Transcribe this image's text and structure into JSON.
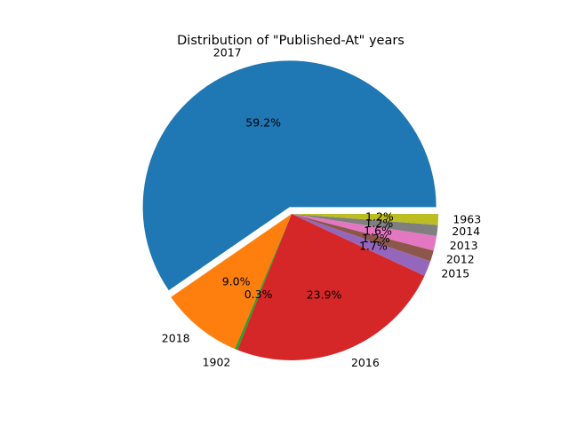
{
  "chart_data": {
    "type": "pie",
    "title": "Distribution of \"Published-At\" years",
    "slices": [
      {
        "label": "2017",
        "value": 59.2,
        "pct_label": "59.2%",
        "color": "#1f77b4",
        "exploded": true
      },
      {
        "label": "2018",
        "value": 9.0,
        "pct_label": "9.0%",
        "color": "#ff7f0e",
        "exploded": false
      },
      {
        "label": "1902",
        "value": 0.3,
        "pct_label": "0.3%",
        "color": "#2ca02c",
        "exploded": false
      },
      {
        "label": "2016",
        "value": 23.9,
        "pct_label": "23.9%",
        "color": "#d62728",
        "exploded": false
      },
      {
        "label": "2015",
        "value": 1.7,
        "pct_label": "1.7%",
        "color": "#9467bd",
        "exploded": false
      },
      {
        "label": "2012",
        "value": 1.2,
        "pct_label": "1.2%",
        "color": "#8c564b",
        "exploded": false
      },
      {
        "label": "2013",
        "value": 1.6,
        "pct_label": "1.6%",
        "color": "#e377c2",
        "exploded": false
      },
      {
        "label": "2014",
        "value": 1.2,
        "pct_label": "1.2%",
        "color": "#7f7f7f",
        "exploded": false
      },
      {
        "label": "1963",
        "value": 1.2,
        "pct_label": "1.2%",
        "color": "#bcbd22",
        "exploded": false
      }
    ],
    "start_angle_deg": 0,
    "direction": "counterclockwise",
    "legend": "none"
  }
}
